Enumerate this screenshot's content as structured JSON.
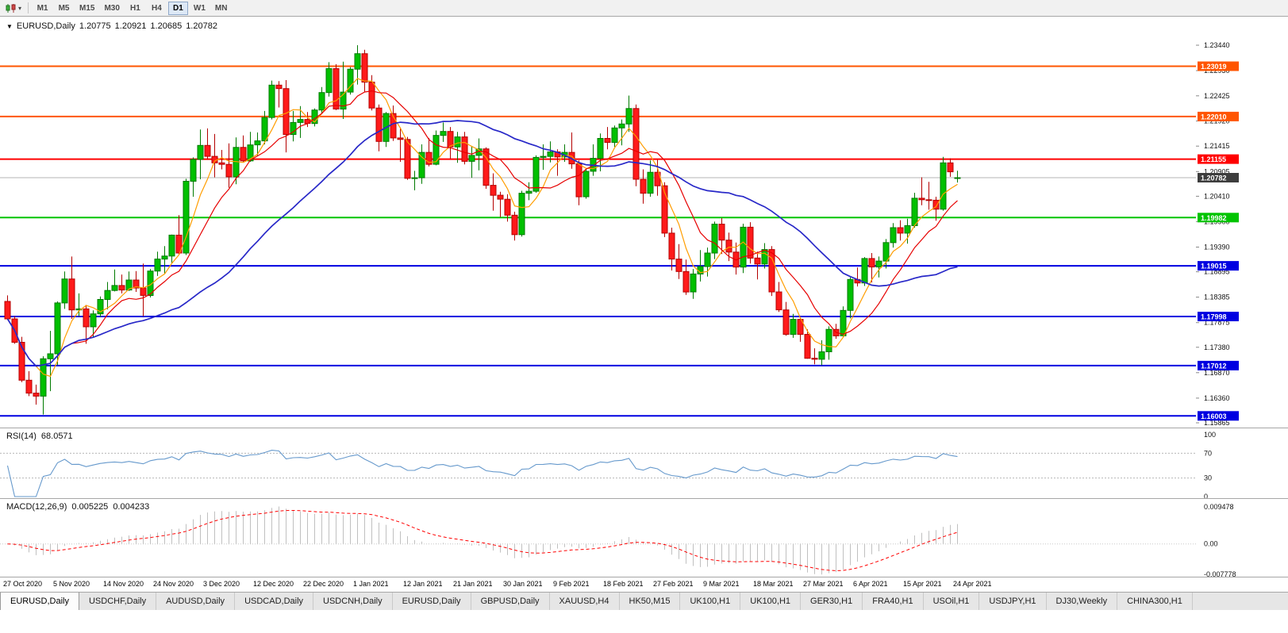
{
  "toolbar": {
    "chart_icon": "candlestick-chart-icon",
    "timeframes": [
      "M1",
      "M5",
      "M15",
      "M30",
      "H1",
      "H4",
      "D1",
      "W1",
      "MN"
    ],
    "active_timeframe": "D1"
  },
  "chart_title": {
    "symbol_timeframe": "EURUSD,Daily",
    "open": "1.20775",
    "high": "1.20921",
    "low": "1.20685",
    "close": "1.20782"
  },
  "rsi_panel": {
    "name": "RSI(14)",
    "value": "68.0571",
    "axis_labels": [
      "100",
      "70",
      "30",
      "0"
    ],
    "levels": [
      70,
      30
    ],
    "line_color": "#6699cc",
    "level_color": "#b8b8b8"
  },
  "macd_panel": {
    "name": "MACD(12,26,9)",
    "macd_value": "0.005225",
    "signal_value": "0.004233",
    "axis_labels": [
      "0.009478",
      "0.00",
      "-0.007778"
    ],
    "histogram_color": "#c0c0c0",
    "signal_color": "#ff0000"
  },
  "time_axis": {
    "labels": [
      "27 Oct 2020",
      "5 Nov 2020",
      "14 Nov 2020",
      "24 Nov 2020",
      "3 Dec 2020",
      "12 Dec 2020",
      "22 Dec 2020",
      "1 Jan 2021",
      "12 Jan 2021",
      "21 Jan 2021",
      "30 Jan 2021",
      "9 Feb 2021",
      "18 Feb 2021",
      "27 Feb 2021",
      "9 Mar 2021",
      "18 Mar 2021",
      "27 Mar 2021",
      "6 Apr 2021",
      "15 Apr 2021",
      "24 Apr 2021"
    ],
    "label_step": 7
  },
  "tab_bar": {
    "active_index": 0,
    "tabs": [
      "EURUSD,Daily",
      "USDCHF,Daily",
      "AUDUSD,Daily",
      "USDCAD,Daily",
      "USDCNH,Daily",
      "EURUSD,Daily",
      "GBPUSD,Daily",
      "XAUUSD,H4",
      "HK50,M15",
      "UK100,H1",
      "UK100,H1",
      "GER30,H1",
      "FRA40,H1",
      "USOil,H1",
      "USDJPY,H1",
      "DJ30,Weekly",
      "CHINA300,H1"
    ]
  },
  "chart_data": {
    "type": "candlestick",
    "symbol": "EURUSD",
    "timeframe": "Daily",
    "ylim": [
      1.15865,
      1.2344
    ],
    "price_axis_labels": [
      "1.23440",
      "1.22930",
      "1.22425",
      "1.21920",
      "1.21415",
      "1.20905",
      "1.20410",
      "1.19900",
      "1.19390",
      "1.18895",
      "1.18385",
      "1.17875",
      "1.17380",
      "1.16870",
      "1.16360",
      "1.15865"
    ],
    "candle_colors": {
      "up": "#00c000",
      "up_border": "#007a00",
      "down": "#ff1a1a",
      "down_border": "#b40000"
    },
    "horizontal_lines": [
      {
        "price": 1.23019,
        "label": "1.23019",
        "color": "#ff5500",
        "width": 2
      },
      {
        "price": 1.2201,
        "label": "1.22010",
        "color": "#ff5500",
        "width": 2
      },
      {
        "price": 1.21155,
        "label": "1.21155",
        "color": "#ff0000",
        "width": 2
      },
      {
        "price": 1.19982,
        "label": "1.19982",
        "color": "#00c400",
        "width": 2
      },
      {
        "price": 1.19015,
        "label": "1.19015",
        "color": "#0000e1",
        "width": 2
      },
      {
        "price": 1.17998,
        "label": "1.17998",
        "color": "#0000e1",
        "width": 2
      },
      {
        "price": 1.17012,
        "label": "1.17012",
        "color": "#0000e1",
        "width": 2
      },
      {
        "price": 1.16003,
        "label": "1.16003",
        "color": "#0000e1",
        "width": 2
      }
    ],
    "current_price": {
      "value": 1.20782,
      "label": "1.20782",
      "tag_color": "#3d3d3d",
      "line_color": "#b4b4b4"
    },
    "moving_averages": [
      {
        "period": 5,
        "color": "#ff9d00",
        "width": 1.2
      },
      {
        "period": 10,
        "color": "#e60000",
        "width": 1.2
      },
      {
        "period": 30,
        "color": "#2828c8",
        "width": 1.7
      }
    ],
    "rsi": {
      "period": 14
    },
    "macd": {
      "fast": 12,
      "slow": 26,
      "signal": 9
    },
    "candles_ohlc": [
      [
        1.183,
        1.1842,
        1.1793,
        1.1795
      ],
      [
        1.1795,
        1.18,
        1.1745,
        1.1748
      ],
      [
        1.1748,
        1.1759,
        1.1668,
        1.1672
      ],
      [
        1.1672,
        1.169,
        1.164,
        1.1646
      ],
      [
        1.1646,
        1.1663,
        1.1623,
        1.164
      ],
      [
        1.164,
        1.172,
        1.1603,
        1.1715
      ],
      [
        1.1715,
        1.1771,
        1.165,
        1.1725
      ],
      [
        1.1725,
        1.183,
        1.1702,
        1.1827
      ],
      [
        1.1827,
        1.189,
        1.1815,
        1.1875
      ],
      [
        1.1875,
        1.192,
        1.1795,
        1.1813
      ],
      [
        1.1813,
        1.1846,
        1.18,
        1.1815
      ],
      [
        1.1815,
        1.1823,
        1.1745,
        1.1779
      ],
      [
        1.1779,
        1.1812,
        1.1758,
        1.1805
      ],
      [
        1.1805,
        1.184,
        1.1799,
        1.1834
      ],
      [
        1.1834,
        1.1869,
        1.1814,
        1.1852
      ],
      [
        1.1852,
        1.1894,
        1.185,
        1.1862
      ],
      [
        1.1862,
        1.1884,
        1.1846,
        1.1853
      ],
      [
        1.1853,
        1.189,
        1.1851,
        1.1873
      ],
      [
        1.1873,
        1.1891,
        1.1849,
        1.1857
      ],
      [
        1.1857,
        1.1906,
        1.18,
        1.1842
      ],
      [
        1.1842,
        1.1895,
        1.1838,
        1.1891
      ],
      [
        1.1891,
        1.193,
        1.1881,
        1.1915
      ],
      [
        1.1915,
        1.1941,
        1.1886,
        1.1921
      ],
      [
        1.1921,
        1.1964,
        1.1907,
        1.1963
      ],
      [
        1.1963,
        1.2003,
        1.1923,
        1.1927
      ],
      [
        1.1927,
        1.2076,
        1.1923,
        1.2071
      ],
      [
        1.2071,
        1.2119,
        1.204,
        1.2115
      ],
      [
        1.2115,
        1.2175,
        1.2075,
        1.2143
      ],
      [
        1.2143,
        1.2177,
        1.2115,
        1.2121
      ],
      [
        1.2121,
        1.2166,
        1.2079,
        1.2108
      ],
      [
        1.2108,
        1.2134,
        1.2095,
        1.2105
      ],
      [
        1.2105,
        1.2147,
        1.2058,
        1.208
      ],
      [
        1.208,
        1.2159,
        1.2065,
        1.2139
      ],
      [
        1.2139,
        1.2163,
        1.211,
        1.2112
      ],
      [
        1.2112,
        1.217,
        1.211,
        1.2144
      ],
      [
        1.2144,
        1.2169,
        1.2123,
        1.2152
      ],
      [
        1.2152,
        1.2212,
        1.2145,
        1.2199
      ],
      [
        1.2199,
        1.2273,
        1.2195,
        1.2264
      ],
      [
        1.2264,
        1.2272,
        1.2219,
        1.2257
      ],
      [
        1.2257,
        1.2274,
        1.2129,
        1.2165
      ],
      [
        1.2165,
        1.2212,
        1.2151,
        1.2189
      ],
      [
        1.2189,
        1.2222,
        1.2158,
        1.2195
      ],
      [
        1.2195,
        1.221,
        1.218,
        1.2187
      ],
      [
        1.2187,
        1.2217,
        1.2181,
        1.2214
      ],
      [
        1.2214,
        1.226,
        1.2208,
        1.2249
      ],
      [
        1.2249,
        1.231,
        1.2241,
        1.2297
      ],
      [
        1.2297,
        1.2306,
        1.2214,
        1.2216
      ],
      [
        1.2216,
        1.2311,
        1.2196,
        1.225
      ],
      [
        1.225,
        1.23,
        1.2245,
        1.2296
      ],
      [
        1.2296,
        1.2344,
        1.2265,
        1.2327
      ],
      [
        1.2327,
        1.2335,
        1.225,
        1.227
      ],
      [
        1.227,
        1.2284,
        1.2213,
        1.2218
      ],
      [
        1.2218,
        1.2225,
        1.2131,
        1.2151
      ],
      [
        1.2151,
        1.221,
        1.214,
        1.2207
      ],
      [
        1.2207,
        1.2223,
        1.2152,
        1.2158
      ],
      [
        1.2158,
        1.2179,
        1.211,
        1.2155
      ],
      [
        1.2155,
        1.216,
        1.2074,
        1.2077
      ],
      [
        1.2077,
        1.2092,
        1.2053,
        1.2078
      ],
      [
        1.2078,
        1.2145,
        1.2066,
        1.2129
      ],
      [
        1.2129,
        1.2158,
        1.2101,
        1.2105
      ],
      [
        1.2105,
        1.2173,
        1.2103,
        1.2163
      ],
      [
        1.2163,
        1.2189,
        1.215,
        1.2171
      ],
      [
        1.2171,
        1.218,
        1.2116,
        1.214
      ],
      [
        1.214,
        1.217,
        1.2108,
        1.216
      ],
      [
        1.216,
        1.217,
        1.2105,
        1.2111
      ],
      [
        1.2111,
        1.2142,
        1.2078,
        1.2123
      ],
      [
        1.2123,
        1.2157,
        1.2093,
        1.2136
      ],
      [
        1.2136,
        1.2139,
        1.2056,
        1.2063
      ],
      [
        1.2063,
        1.2087,
        1.2012,
        1.2043
      ],
      [
        1.2043,
        1.205,
        1.1999,
        1.2035
      ],
      [
        1.2035,
        1.2045,
        1.199,
        1.2003
      ],
      [
        1.2003,
        1.201,
        1.1952,
        1.1964
      ],
      [
        1.1964,
        1.2052,
        1.196,
        1.2047
      ],
      [
        1.2047,
        1.2069,
        1.2033,
        1.2051
      ],
      [
        1.2051,
        1.2123,
        1.2048,
        1.2119
      ],
      [
        1.2119,
        1.2145,
        1.2094,
        1.2121
      ],
      [
        1.2121,
        1.2151,
        1.2109,
        1.213
      ],
      [
        1.213,
        1.2135,
        1.2082,
        1.212
      ],
      [
        1.212,
        1.2145,
        1.211,
        1.2129
      ],
      [
        1.2129,
        1.2169,
        1.2096,
        1.2106
      ],
      [
        1.2106,
        1.2113,
        1.2023,
        1.204
      ],
      [
        1.204,
        1.2096,
        1.2036,
        1.2091
      ],
      [
        1.2091,
        1.2145,
        1.2082,
        1.2117
      ],
      [
        1.2117,
        1.2167,
        1.2091,
        1.2157
      ],
      [
        1.2157,
        1.218,
        1.2135,
        1.2149
      ],
      [
        1.2149,
        1.2183,
        1.214,
        1.2178
      ],
      [
        1.2178,
        1.2195,
        1.2143,
        1.2186
      ],
      [
        1.2186,
        1.2243,
        1.217,
        1.2217
      ],
      [
        1.2217,
        1.2225,
        1.2061,
        1.2075
      ],
      [
        1.2075,
        1.2095,
        1.2026,
        1.2047
      ],
      [
        1.2047,
        1.2113,
        1.204,
        1.2089
      ],
      [
        1.2089,
        1.2114,
        1.2042,
        1.2062
      ],
      [
        1.2062,
        1.2069,
        1.1959,
        1.1967
      ],
      [
        1.1967,
        1.1978,
        1.1892,
        1.1915
      ],
      [
        1.1915,
        1.1945,
        1.1875,
        1.189
      ],
      [
        1.189,
        1.1914,
        1.1843,
        1.1849
      ],
      [
        1.1849,
        1.1895,
        1.1835,
        1.1885
      ],
      [
        1.1885,
        1.1933,
        1.187,
        1.19
      ],
      [
        1.19,
        1.1938,
        1.188,
        1.1927
      ],
      [
        1.1927,
        1.199,
        1.1915,
        1.1985
      ],
      [
        1.1985,
        1.1997,
        1.1925,
        1.1953
      ],
      [
        1.1953,
        1.1968,
        1.1911,
        1.1929
      ],
      [
        1.1929,
        1.1948,
        1.1884,
        1.1899
      ],
      [
        1.1899,
        1.1986,
        1.1887,
        1.1979
      ],
      [
        1.1979,
        1.1989,
        1.1906,
        1.1917
      ],
      [
        1.1917,
        1.193,
        1.1874,
        1.1905
      ],
      [
        1.1905,
        1.1947,
        1.1896,
        1.1934
      ],
      [
        1.1934,
        1.1941,
        1.1841,
        1.1849
      ],
      [
        1.1849,
        1.1869,
        1.1809,
        1.1813
      ],
      [
        1.1813,
        1.1829,
        1.1761,
        1.1764
      ],
      [
        1.1764,
        1.1805,
        1.1757,
        1.1794
      ],
      [
        1.1794,
        1.1799,
        1.1749,
        1.1764
      ],
      [
        1.1764,
        1.1774,
        1.1715,
        1.1716
      ],
      [
        1.1716,
        1.1736,
        1.1704,
        1.1714
      ],
      [
        1.1714,
        1.1752,
        1.1702,
        1.1729
      ],
      [
        1.1729,
        1.178,
        1.1713,
        1.1774
      ],
      [
        1.1774,
        1.1785,
        1.1755,
        1.1761
      ],
      [
        1.1761,
        1.182,
        1.1758,
        1.1812
      ],
      [
        1.1812,
        1.1878,
        1.1796,
        1.1874
      ],
      [
        1.1874,
        1.1898,
        1.186,
        1.1867
      ],
      [
        1.1867,
        1.1919,
        1.1861,
        1.1916
      ],
      [
        1.1916,
        1.1927,
        1.1868,
        1.1899
      ],
      [
        1.1899,
        1.192,
        1.1878,
        1.1911
      ],
      [
        1.1911,
        1.1955,
        1.1896,
        1.1948
      ],
      [
        1.1948,
        1.1987,
        1.1938,
        1.1978
      ],
      [
        1.1978,
        1.1993,
        1.1952,
        1.1967
      ],
      [
        1.1967,
        1.1996,
        1.1946,
        1.1982
      ],
      [
        1.1982,
        1.2048,
        1.1978,
        1.2037
      ],
      [
        1.2037,
        1.2079,
        1.2023,
        1.2034
      ],
      [
        1.2034,
        1.207,
        1.2014,
        1.2033
      ],
      [
        1.2033,
        1.204,
        1.1992,
        1.2015
      ],
      [
        1.2015,
        1.212,
        1.2012,
        1.2108
      ],
      [
        1.2108,
        1.2117,
        1.208,
        1.209
      ],
      [
        1.20775,
        1.20921,
        1.20685,
        1.20782
      ]
    ]
  }
}
